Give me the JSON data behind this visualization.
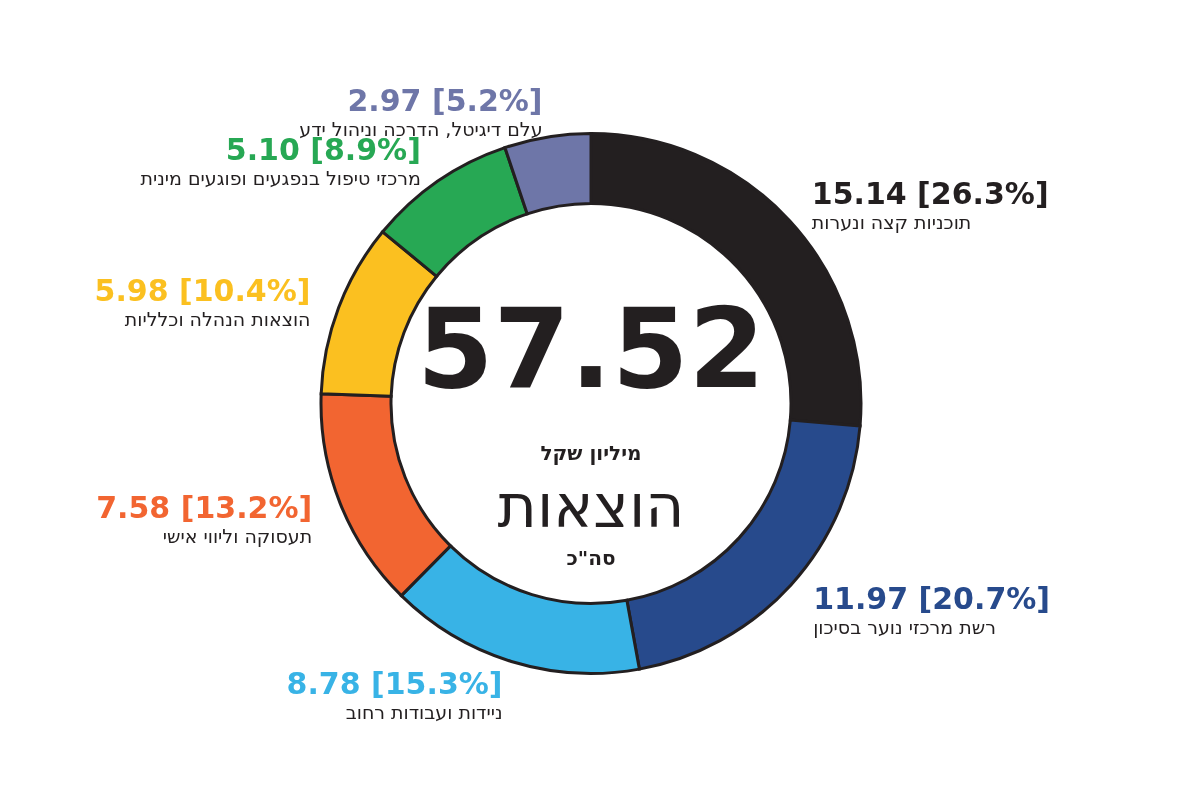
{
  "chart_data": {
    "type": "donut",
    "categories": [
      "תוכניות קצה ונערות",
      "רשת מרכזי נוער בסיכון",
      "ניידות ועבודות רחוב",
      "תעסוקה וליווי אישי",
      "הוצאות הנהלה וכלליות",
      "מרכזי טיפול בנפגעים ופוגעים מינית",
      "עלם דיגיטל, הדרכה וניהול ידע"
    ],
    "values": [
      15.14,
      11.97,
      8.78,
      7.58,
      5.98,
      5.1,
      2.97
    ],
    "colors": [
      "#231f20",
      "#274a8c",
      "#38b3e6",
      "#f26531",
      "#fbc020",
      "#27a854",
      "#6e76a8"
    ],
    "value_labels": [
      "15.14 [26.3%]",
      "11.97 [20.7%]",
      "8.78 [15.3%]",
      "7.58 [13.2%]",
      "5.98 [10.4%]",
      "5.10 [8.9%]",
      "2.97 [5.2%]"
    ],
    "annotations": [
      "57.52",
      "מיליון שקל",
      "הוצאות",
      "סה\"כ"
    ]
  }
}
